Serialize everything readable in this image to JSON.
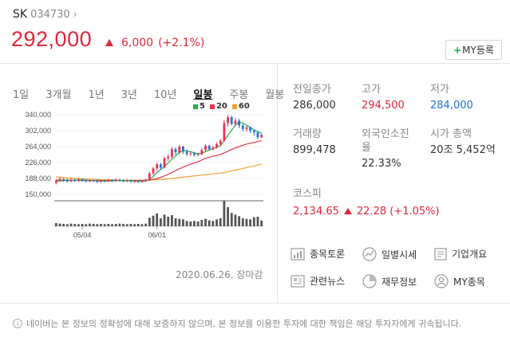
{
  "header": {
    "name": "SK",
    "code": "034730",
    "price": "292,000",
    "change_amount": "6,000",
    "change_percent": "(+2.1%)",
    "my_button": "MY등록"
  },
  "period_tabs": [
    "1일",
    "3개월",
    "1년",
    "3년",
    "10년",
    "일봉",
    "주봉",
    "월봉"
  ],
  "active_tab": "일봉",
  "legend": [
    {
      "label": "5",
      "color": "#22b14c"
    },
    {
      "label": "20",
      "color": "#e8344f"
    },
    {
      "label": "60",
      "color": "#f0a030"
    }
  ],
  "chart_data": {
    "type": "candlestick",
    "y_ticks": [
      "340,000",
      "302,000",
      "264,000",
      "226,000",
      "188,000",
      "150,000"
    ],
    "ylim": [
      150000,
      340000
    ],
    "x_ticks": [
      "05/04",
      "06/01"
    ],
    "candles": [
      [
        178000,
        183000,
        174000,
        186000
      ],
      [
        183000,
        187000,
        181000,
        190000
      ],
      [
        186000,
        184000,
        180000,
        189000
      ],
      [
        184000,
        181000,
        178000,
        187000
      ],
      [
        181000,
        185000,
        179000,
        188000
      ],
      [
        185000,
        182000,
        179000,
        187000
      ],
      [
        182000,
        186000,
        180000,
        189000
      ],
      [
        186000,
        183000,
        180000,
        188000
      ],
      [
        183000,
        181000,
        178000,
        186000
      ],
      [
        181000,
        184000,
        179000,
        187000
      ],
      [
        184000,
        182000,
        179000,
        186000
      ],
      [
        182000,
        180000,
        177000,
        185000
      ],
      [
        180000,
        183000,
        178000,
        186000
      ],
      [
        183000,
        181000,
        178000,
        185000
      ],
      [
        181000,
        184000,
        179000,
        187000
      ],
      [
        184000,
        182000,
        180000,
        186000
      ],
      [
        182000,
        185000,
        180000,
        188000
      ],
      [
        185000,
        183000,
        181000,
        187000
      ],
      [
        183000,
        181000,
        179000,
        186000
      ],
      [
        181000,
        183000,
        179000,
        186000
      ],
      [
        183000,
        180000,
        178000,
        185000
      ],
      [
        180000,
        182000,
        178000,
        185000
      ],
      [
        182000,
        180000,
        177000,
        184000
      ],
      [
        180000,
        182000,
        178000,
        185000
      ],
      [
        182000,
        185000,
        180000,
        188000
      ],
      [
        185000,
        200000,
        183000,
        204000
      ],
      [
        200000,
        212000,
        196000,
        216000
      ],
      [
        212000,
        222000,
        206000,
        226000
      ],
      [
        222000,
        214000,
        209000,
        225000
      ],
      [
        214000,
        236000,
        212000,
        240000
      ],
      [
        236000,
        240000,
        230000,
        246000
      ],
      [
        240000,
        258000,
        236000,
        263000
      ],
      [
        258000,
        250000,
        244000,
        262000
      ],
      [
        250000,
        264000,
        246000,
        268000
      ],
      [
        264000,
        252000,
        246000,
        266000
      ],
      [
        252000,
        246000,
        242000,
        257000
      ],
      [
        246000,
        248000,
        242000,
        252000
      ],
      [
        248000,
        244000,
        240000,
        251000
      ],
      [
        244000,
        246000,
        241000,
        250000
      ],
      [
        246000,
        256000,
        243000,
        260000
      ],
      [
        256000,
        266000,
        252000,
        270000
      ],
      [
        266000,
        258000,
        254000,
        268000
      ],
      [
        258000,
        262000,
        255000,
        266000
      ],
      [
        262000,
        270000,
        259000,
        274000
      ],
      [
        270000,
        278000,
        266000,
        282000
      ],
      [
        278000,
        320000,
        276000,
        328000
      ],
      [
        320000,
        334000,
        312000,
        340000
      ],
      [
        334000,
        318000,
        314000,
        338000
      ],
      [
        318000,
        326000,
        312000,
        332000
      ],
      [
        326000,
        314000,
        308000,
        330000
      ],
      [
        314000,
        306000,
        300000,
        318000
      ],
      [
        306000,
        310000,
        300000,
        314000
      ],
      [
        310000,
        302000,
        296000,
        312000
      ],
      [
        302000,
        298000,
        290000,
        306000
      ],
      [
        298000,
        286000,
        282000,
        300000
      ],
      [
        286000,
        292000,
        284000,
        295000
      ]
    ],
    "ma5": [
      180000,
      182000,
      183000,
      183000,
      184000,
      184000,
      184000,
      184000,
      184000,
      183000,
      183000,
      182000,
      182000,
      182000,
      182000,
      182000,
      183000,
      183000,
      183000,
      183000,
      183000,
      182000,
      181000,
      181000,
      182000,
      186000,
      193000,
      202000,
      209000,
      217000,
      225000,
      234000,
      242000,
      250000,
      254000,
      254000,
      252000,
      249000,
      247000,
      248000,
      252000,
      256000,
      259000,
      262000,
      266000,
      278000,
      291000,
      303000,
      315000,
      323000,
      320000,
      315000,
      310000,
      304000,
      300000,
      296000
    ],
    "ma20": [
      184000,
      184000,
      184000,
      184000,
      184000,
      184000,
      184000,
      183000,
      183000,
      183000,
      183000,
      183000,
      183000,
      183000,
      183000,
      183000,
      183000,
      183000,
      183000,
      183000,
      183000,
      183000,
      183000,
      183000,
      183000,
      184000,
      186000,
      188000,
      191000,
      194000,
      198000,
      202000,
      207000,
      211000,
      215000,
      219000,
      222000,
      225000,
      228000,
      232000,
      236000,
      239000,
      241000,
      243000,
      245000,
      249000,
      253000,
      257000,
      261000,
      264000,
      267000,
      270000,
      272000,
      274000,
      276000,
      278000
    ],
    "ma60": [
      192000,
      191000,
      190000,
      189000,
      189000,
      188000,
      188000,
      187000,
      187000,
      186000,
      186000,
      186000,
      185000,
      185000,
      185000,
      185000,
      184000,
      184000,
      184000,
      184000,
      184000,
      184000,
      184000,
      184000,
      184000,
      184000,
      185000,
      185000,
      186000,
      186000,
      187000,
      188000,
      189000,
      190000,
      191000,
      192000,
      193000,
      194000,
      195000,
      196000,
      197000,
      198000,
      199000,
      200000,
      201000,
      202000,
      204000,
      206000,
      208000,
      210000,
      212000,
      214000,
      216000,
      218000,
      220000,
      222000
    ],
    "volume": [
      12,
      10,
      9,
      8,
      10,
      9,
      8,
      9,
      8,
      10,
      9,
      8,
      9,
      8,
      9,
      8,
      9,
      10,
      9,
      8,
      9,
      8,
      9,
      8,
      10,
      32,
      40,
      48,
      30,
      44,
      36,
      42,
      30,
      28,
      26,
      20,
      18,
      20,
      18,
      24,
      28,
      22,
      20,
      26,
      30,
      96,
      72,
      50,
      44,
      38,
      30,
      28,
      26,
      34,
      36,
      22
    ]
  },
  "timestamp": "2020.06.26. 장마감",
  "info": {
    "prev_close_label": "전일종가",
    "prev_close": "286,000",
    "high_label": "고가",
    "high": "294,500",
    "low_label": "저가",
    "low": "284,000",
    "volume_label": "거래량",
    "volume": "899,478",
    "foreign_label": "외국인소진율",
    "foreign": "22.33%",
    "market_cap_label": "시가 총액",
    "market_cap": "20조 5,452억"
  },
  "kospi": {
    "label": "코스피",
    "value": "2,134.65",
    "change": "22.28 (+1.05%)"
  },
  "links": [
    {
      "label": "종목토론",
      "icon": "chart-board-icon"
    },
    {
      "label": "일별시세",
      "icon": "trend-icon"
    },
    {
      "label": "기업개요",
      "icon": "document-icon"
    },
    {
      "label": "관련뉴스",
      "icon": "news-icon"
    },
    {
      "label": "재무정보",
      "icon": "pie-icon"
    },
    {
      "label": "MY종목",
      "icon": "person-icon"
    }
  ],
  "notice": "네이버는 본 정보의 정확성에 대해 보증하지 않으며, 본 정보를 이용한 투자에 대한 책임은 해당 투자자에게 귀속됩니다."
}
